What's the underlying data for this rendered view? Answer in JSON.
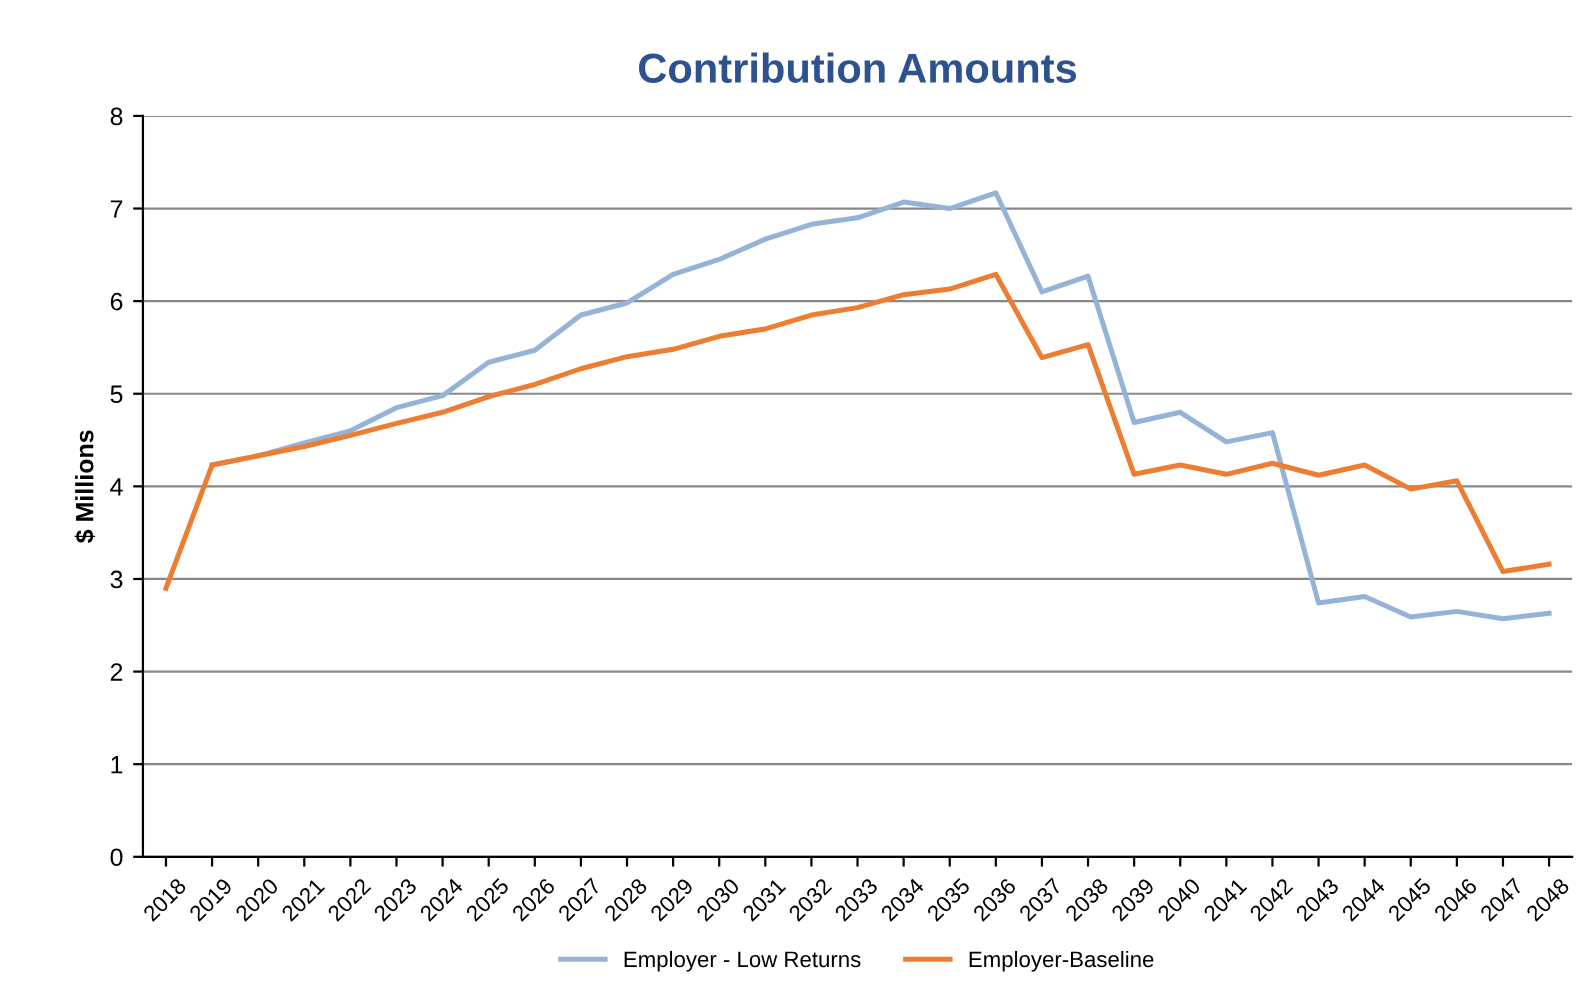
{
  "chart_data": {
    "type": "line",
    "title": "Contribution Amounts",
    "ylabel": "$ Millions",
    "categories": [
      "2018",
      "2019",
      "2020",
      "2021",
      "2022",
      "2023",
      "2024",
      "2025",
      "2026",
      "2027",
      "2028",
      "2029",
      "2030",
      "2031",
      "2032",
      "2033",
      "2034",
      "2035",
      "2036",
      "2037",
      "2038",
      "2039",
      "2040",
      "2041",
      "2042",
      "2043",
      "2044",
      "2045",
      "2046",
      "2047",
      "2048"
    ],
    "series": [
      {
        "name": "Employer - Low Returns",
        "color": "#95b3d7",
        "values": [
          null,
          4.23,
          4.33,
          4.47,
          4.6,
          4.85,
          4.98,
          5.34,
          5.47,
          5.85,
          5.98,
          6.29,
          6.45,
          6.67,
          6.83,
          6.9,
          7.07,
          7.0,
          7.17,
          6.1,
          6.27,
          4.69,
          4.8,
          4.48,
          4.58,
          2.74,
          2.81,
          2.59,
          2.65,
          2.57,
          2.63
        ]
      },
      {
        "name": "Employer-Baseline",
        "color": "#ed7d31",
        "values": [
          2.9,
          4.23,
          4.33,
          4.43,
          4.55,
          4.68,
          4.8,
          4.97,
          5.1,
          5.27,
          5.4,
          5.48,
          5.62,
          5.7,
          5.85,
          5.93,
          6.07,
          6.13,
          6.29,
          5.39,
          5.53,
          4.13,
          4.23,
          4.13,
          4.25,
          4.12,
          4.23,
          3.97,
          4.06,
          3.08,
          3.16
        ]
      }
    ],
    "ylim": [
      0,
      8
    ],
    "yticks": [
      0,
      1,
      2,
      3,
      4,
      5,
      6,
      7,
      8
    ],
    "grid": "y",
    "legend": "bottom",
    "marker": "none",
    "line_style": "solid"
  }
}
